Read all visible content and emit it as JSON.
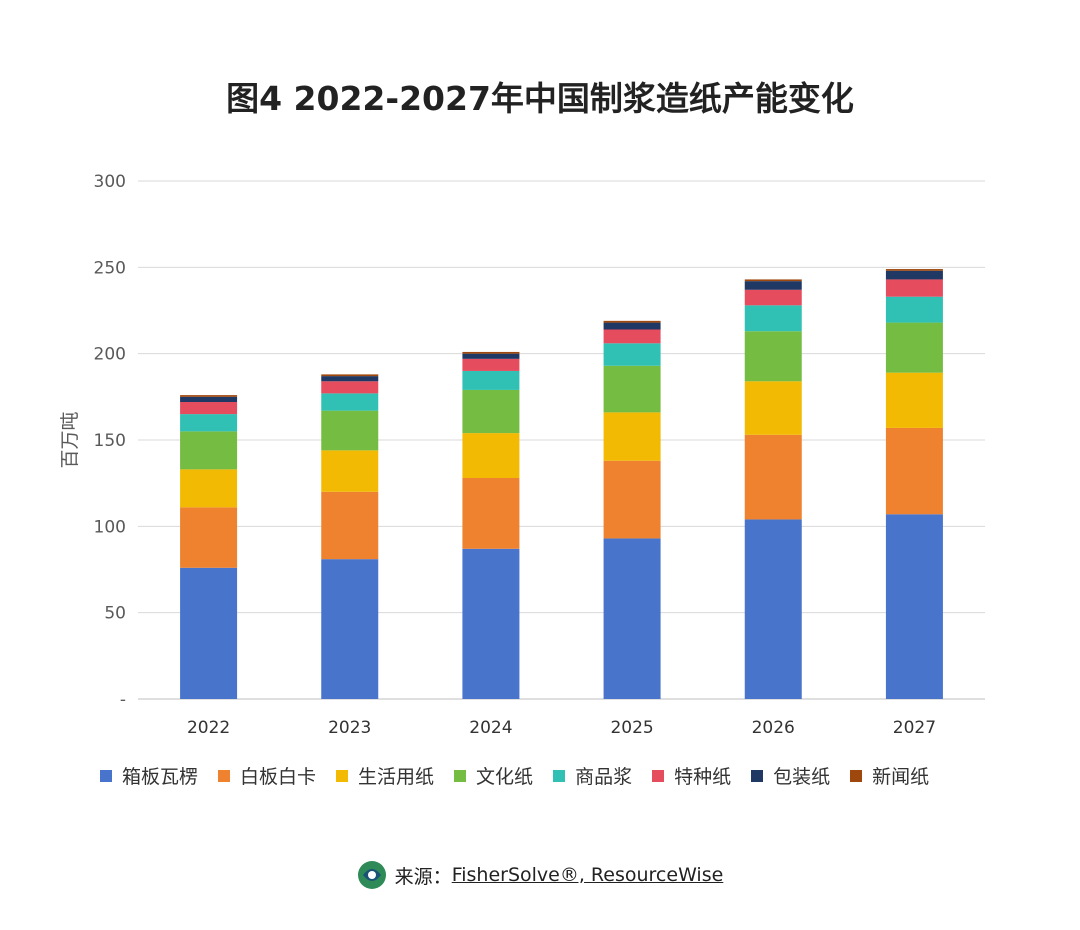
{
  "chart_data": {
    "type": "bar",
    "stacked": true,
    "title": "图4  2022-2027年中国制浆造纸产能变化",
    "ylabel": "百万吨",
    "xlabel": "",
    "ylim": [
      0,
      300
    ],
    "yticks": [
      "-",
      "50",
      "100",
      "150",
      "200",
      "250",
      "300"
    ],
    "grid": true,
    "legend_position": "bottom",
    "categories": [
      "2022",
      "2023",
      "2024",
      "2025",
      "2026",
      "2027"
    ],
    "series": [
      {
        "name": "箱板瓦楞",
        "color": "#4874CB",
        "values": [
          76,
          81,
          87,
          93,
          104,
          107
        ]
      },
      {
        "name": "白板白卡",
        "color": "#EE822F",
        "values": [
          35,
          39,
          41,
          45,
          49,
          50
        ]
      },
      {
        "name": "生活用纸",
        "color": "#F2BA02",
        "values": [
          22,
          24,
          26,
          28,
          31,
          32
        ]
      },
      {
        "name": "文化纸",
        "color": "#75BD42",
        "values": [
          22,
          23,
          25,
          27,
          29,
          29
        ]
      },
      {
        "name": "商品浆",
        "color": "#30C0B4",
        "values": [
          10,
          10,
          11,
          13,
          15,
          15
        ]
      },
      {
        "name": "特种纸",
        "color": "#E54C5E",
        "values": [
          7,
          7,
          7,
          8,
          9,
          10
        ]
      },
      {
        "name": "包装纸",
        "color": "#203864",
        "values": [
          3,
          3,
          3,
          4,
          5,
          5
        ]
      },
      {
        "name": "新闻纸",
        "color": "#9E480E",
        "values": [
          1,
          1,
          1,
          1,
          1,
          1
        ]
      }
    ]
  },
  "source": {
    "label": "来源：",
    "text": "FisherSolve®, ResourceWise",
    "logo_icon": "fishersolve-logo-icon"
  }
}
